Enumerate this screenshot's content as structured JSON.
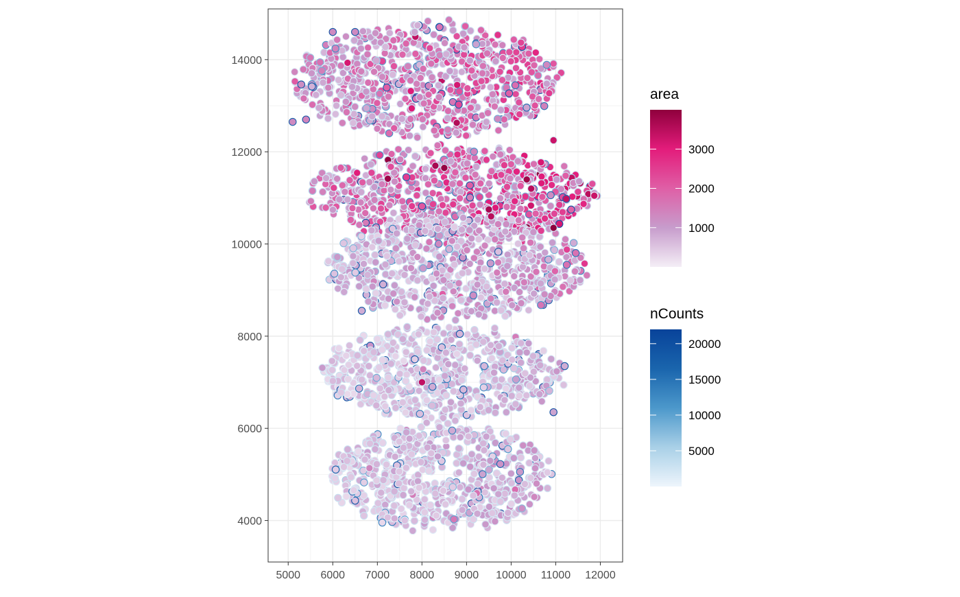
{
  "chart_data": {
    "type": "scatter",
    "title": "",
    "xlabel": "",
    "ylabel": "",
    "xlim": [
      4550,
      12500
    ],
    "ylim": [
      3100,
      15100
    ],
    "x_ticks": [
      5000,
      6000,
      7000,
      8000,
      9000,
      10000,
      11000,
      12000
    ],
    "y_ticks": [
      4000,
      6000,
      8000,
      10000,
      12000,
      14000
    ],
    "grid": true,
    "legend_position": "right",
    "series": [
      {
        "name": "area",
        "encoding": "fill",
        "range": [
          0,
          4000
        ],
        "ticks": [
          1000,
          2000,
          3000
        ],
        "colors": [
          "#f4eef6",
          "#c79ccc",
          "#df5fa6",
          "#e31c7b",
          "#8f003d"
        ]
      },
      {
        "name": "nCounts",
        "encoding": "outline",
        "range": [
          0,
          22000
        ],
        "ticks": [
          5000,
          10000,
          15000,
          20000
        ],
        "colors": [
          "#eef5fc",
          "#a9d0e7",
          "#4c98cb",
          "#1a65ad",
          "#08439a"
        ]
      }
    ],
    "tissue_sections": [
      {
        "section": "top",
        "x_range": [
          5000,
          11200
        ],
        "y_range": [
          12200,
          14900
        ],
        "area_mean": 1500
      },
      {
        "section": "upper-middle",
        "x_range": [
          5300,
          12000
        ],
        "y_range": [
          10000,
          12200
        ],
        "area_mean": 1800
      },
      {
        "section": "middle",
        "x_range": [
          5700,
          11800
        ],
        "y_range": [
          8300,
          10700
        ],
        "area_mean": 900
      },
      {
        "section": "lower-middle",
        "x_range": [
          5600,
          11300
        ],
        "y_range": [
          6100,
          8300
        ],
        "area_mean": 600
      },
      {
        "section": "bottom",
        "x_range": [
          5800,
          11000
        ],
        "y_range": [
          3700,
          6200
        ],
        "area_mean": 650
      }
    ],
    "highlight_points": [
      {
        "x": 8300,
        "y": 11700,
        "area": 3700,
        "nCounts": 2000
      },
      {
        "x": 8500,
        "y": 11650,
        "area": 3900,
        "nCounts": 2000
      },
      {
        "x": 9500,
        "y": 10750,
        "area": 3700,
        "nCounts": 2000
      },
      {
        "x": 9550,
        "y": 10600,
        "area": 3500,
        "nCounts": 2000
      },
      {
        "x": 10350,
        "y": 11400,
        "area": 3800,
        "nCounts": 2000
      },
      {
        "x": 10450,
        "y": 11200,
        "area": 3500,
        "nCounts": 2000
      },
      {
        "x": 10950,
        "y": 10350,
        "area": 4000,
        "nCounts": 2000
      },
      {
        "x": 10950,
        "y": 12250,
        "area": 3300,
        "nCounts": 2000
      },
      {
        "x": 8000,
        "y": 7000,
        "area": 3400,
        "nCounts": 2000
      },
      {
        "x": 7650,
        "y": 11450,
        "area": 2500,
        "nCounts": 16000
      },
      {
        "x": 6650,
        "y": 8550,
        "area": 800,
        "nCounts": 19000
      },
      {
        "x": 8850,
        "y": 8050,
        "area": 700,
        "nCounts": 18000
      },
      {
        "x": 11200,
        "y": 7350,
        "area": 800,
        "nCounts": 18000
      },
      {
        "x": 10950,
        "y": 6350,
        "area": 900,
        "nCounts": 20000
      },
      {
        "x": 6000,
        "y": 14600,
        "area": 1300,
        "nCounts": 19000
      },
      {
        "x": 6500,
        "y": 14600,
        "area": 1300,
        "nCounts": 18000
      },
      {
        "x": 5400,
        "y": 12700,
        "area": 1400,
        "nCounts": 19000
      },
      {
        "x": 5100,
        "y": 12650,
        "area": 1300,
        "nCounts": 17000
      }
    ]
  }
}
